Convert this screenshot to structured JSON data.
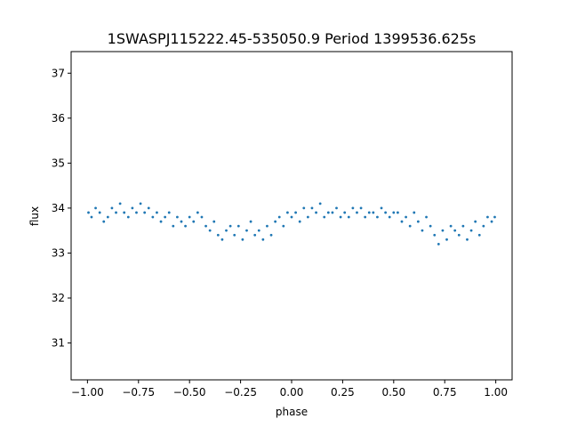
{
  "chart_data": {
    "type": "scatter",
    "title": "1SWASPJ115222.45-535050.9 Period 1399536.625s",
    "xlabel": "phase",
    "ylabel": "flux",
    "xlim": [
      -1.08,
      1.08
    ],
    "ylim": [
      30.18,
      37.48
    ],
    "grid": false,
    "legend": "none",
    "x_ticks": [
      -1.0,
      -0.75,
      -0.5,
      -0.25,
      0.0,
      0.25,
      0.5,
      0.75,
      1.0
    ],
    "x_tick_labels": [
      "−1.00",
      "−0.75",
      "−0.50",
      "−0.25",
      "0.00",
      "0.25",
      "0.50",
      "0.75",
      "1.00"
    ],
    "y_ticks": [
      31,
      32,
      33,
      34,
      35,
      36,
      37
    ],
    "y_tick_labels": [
      "31",
      "32",
      "33",
      "34",
      "35",
      "36",
      "37"
    ],
    "point_color": "#1f77b4",
    "series": [
      {
        "x": [
          -0.995,
          -0.98,
          -0.96,
          -0.94,
          -0.92,
          -0.9,
          -0.88,
          -0.86,
          -0.84,
          -0.82,
          -0.8,
          -0.78,
          -0.76,
          -0.74,
          -0.72,
          -0.7,
          -0.68,
          -0.66,
          -0.64,
          -0.62,
          -0.6,
          -0.58,
          -0.56,
          -0.54,
          -0.52,
          -0.5,
          -0.48,
          -0.46,
          -0.44,
          -0.42,
          -0.4,
          -0.38,
          -0.36,
          -0.34,
          -0.32,
          -0.3,
          -0.28,
          -0.26,
          -0.24,
          -0.22,
          -0.2,
          -0.18,
          -0.16,
          -0.14,
          -0.12,
          -0.1,
          -0.08,
          -0.06,
          -0.04,
          -0.02,
          0.0,
          0.02,
          0.04,
          0.06,
          0.08,
          0.1,
          0.12,
          0.14,
          0.16,
          0.18,
          0.2,
          0.22,
          0.24,
          0.26,
          0.28,
          0.3,
          0.32,
          0.34,
          0.36,
          0.38,
          0.4,
          0.42,
          0.44,
          0.46,
          0.48,
          0.5,
          0.52,
          0.54,
          0.56,
          0.58,
          0.6,
          0.62,
          0.64,
          0.66,
          0.68,
          0.7,
          0.72,
          0.74,
          0.76,
          0.78,
          0.8,
          0.82,
          0.84,
          0.86,
          0.88,
          0.9,
          0.92,
          0.94,
          0.96,
          0.98,
          0.995
        ],
        "y": [
          33.9,
          33.8,
          34.0,
          33.9,
          33.7,
          33.8,
          34.0,
          33.9,
          34.1,
          33.9,
          33.8,
          34.0,
          33.9,
          34.1,
          33.9,
          34.0,
          33.8,
          33.9,
          33.7,
          33.8,
          33.9,
          33.6,
          33.8,
          33.7,
          33.6,
          33.8,
          33.7,
          33.9,
          33.8,
          33.6,
          33.5,
          33.7,
          33.4,
          33.3,
          33.5,
          33.6,
          33.4,
          33.6,
          33.3,
          33.5,
          33.7,
          33.4,
          33.5,
          33.3,
          33.6,
          33.4,
          33.7,
          33.8,
          33.6,
          33.9,
          33.8,
          33.9,
          33.7,
          34.0,
          33.8,
          34.0,
          33.9,
          34.1,
          33.8,
          33.9,
          33.9,
          34.0,
          33.8,
          33.9,
          33.8,
          34.0,
          33.9,
          34.0,
          33.8,
          33.9,
          33.9,
          33.8,
          34.0,
          33.9,
          33.8,
          33.9,
          33.9,
          33.7,
          33.8,
          33.6,
          33.9,
          33.7,
          33.5,
          33.8,
          33.6,
          33.4,
          33.2,
          33.5,
          33.3,
          33.6,
          33.5,
          33.4,
          33.6,
          33.3,
          33.5,
          33.7,
          33.4,
          33.6,
          33.8,
          33.7,
          33.8
        ]
      }
    ]
  }
}
